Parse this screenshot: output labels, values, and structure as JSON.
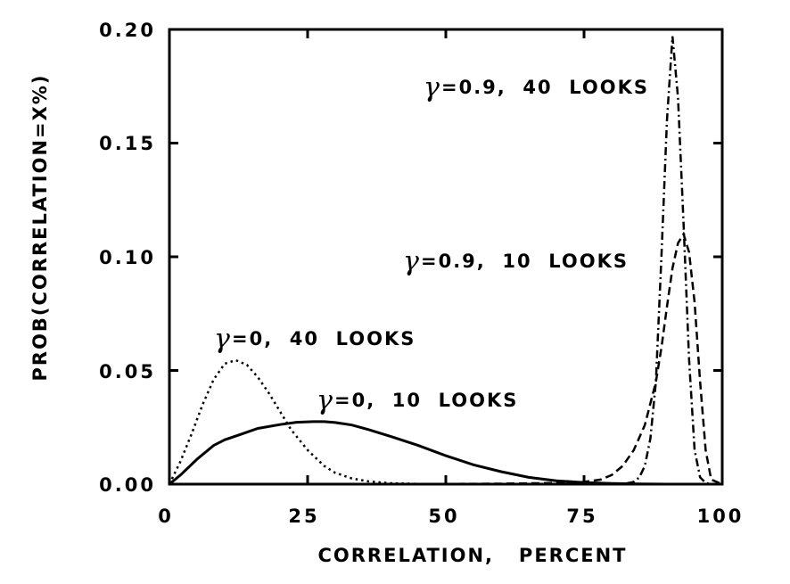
{
  "chart_data": {
    "type": "line",
    "title": "",
    "xlabel": "CORRELATION,   PERCENT",
    "ylabel": "PROB(CORRELATION=X%)",
    "xlim": [
      0,
      100
    ],
    "ylim": [
      0,
      0.2
    ],
    "x_ticks": [
      "0",
      "25",
      "50",
      "75",
      "100"
    ],
    "y_ticks": [
      "0.00",
      "0.05",
      "0.10",
      "0.15",
      "0.20"
    ],
    "grid": false,
    "legend": "none",
    "series": [
      {
        "style": "solid",
        "x": [
          0,
          2,
          5,
          8,
          10,
          13,
          16,
          20,
          23,
          26,
          28,
          30,
          33,
          36,
          40,
          45,
          50,
          55,
          60,
          65,
          70,
          75,
          80,
          85,
          90,
          95,
          100
        ],
        "y": [
          0,
          0.004,
          0.011,
          0.017,
          0.0195,
          0.022,
          0.0245,
          0.0262,
          0.0272,
          0.0275,
          0.0275,
          0.0271,
          0.026,
          0.024,
          0.021,
          0.017,
          0.0125,
          0.0085,
          0.0055,
          0.003,
          0.0015,
          0.0007,
          0.0003,
          0.0001,
          0,
          0,
          0
        ]
      },
      {
        "style": "dotted",
        "x": [
          0,
          2,
          4,
          6,
          8,
          10,
          12,
          14,
          16,
          18,
          20,
          22,
          25,
          28,
          30,
          33,
          36,
          40,
          45,
          50,
          60,
          70,
          80,
          90,
          100
        ],
        "y": [
          0,
          0.01,
          0.022,
          0.035,
          0.046,
          0.053,
          0.0545,
          0.0525,
          0.047,
          0.04,
          0.032,
          0.024,
          0.015,
          0.008,
          0.005,
          0.0025,
          0.0012,
          0.0004,
          0.0001,
          0,
          0,
          0,
          0,
          0,
          0
        ]
      },
      {
        "style": "dashed",
        "x": [
          0,
          20,
          40,
          60,
          70,
          75,
          78,
          80,
          82,
          84,
          86,
          88,
          89,
          90,
          91,
          92,
          93,
          94,
          95,
          96,
          97,
          98,
          100
        ],
        "y": [
          0,
          0,
          0,
          0.0002,
          0.0005,
          0.001,
          0.002,
          0.004,
          0.008,
          0.015,
          0.026,
          0.045,
          0.06,
          0.078,
          0.095,
          0.106,
          0.11,
          0.102,
          0.08,
          0.045,
          0.015,
          0.002,
          0
        ]
      },
      {
        "style": "dash-dot",
        "x": [
          0,
          40,
          70,
          80,
          82,
          84,
          85,
          86,
          87,
          88,
          89,
          90,
          91,
          92,
          93,
          94,
          95,
          96,
          97,
          98,
          100
        ],
        "y": [
          0,
          0,
          0,
          0,
          0,
          0.001,
          0.003,
          0.008,
          0.02,
          0.045,
          0.1,
          0.16,
          0.197,
          0.17,
          0.115,
          0.055,
          0.015,
          0.003,
          0.0005,
          0,
          0
        ]
      }
    ],
    "annotations": [
      {
        "symbol": "γ",
        "text": "=0.9,  40  LOOKS"
      },
      {
        "symbol": "γ",
        "text": "=0.9,  10  LOOKS"
      },
      {
        "symbol": "γ",
        "text": "=0,  40  LOOKS"
      },
      {
        "symbol": "γ",
        "text": "=0,  10  LOOKS"
      }
    ]
  }
}
